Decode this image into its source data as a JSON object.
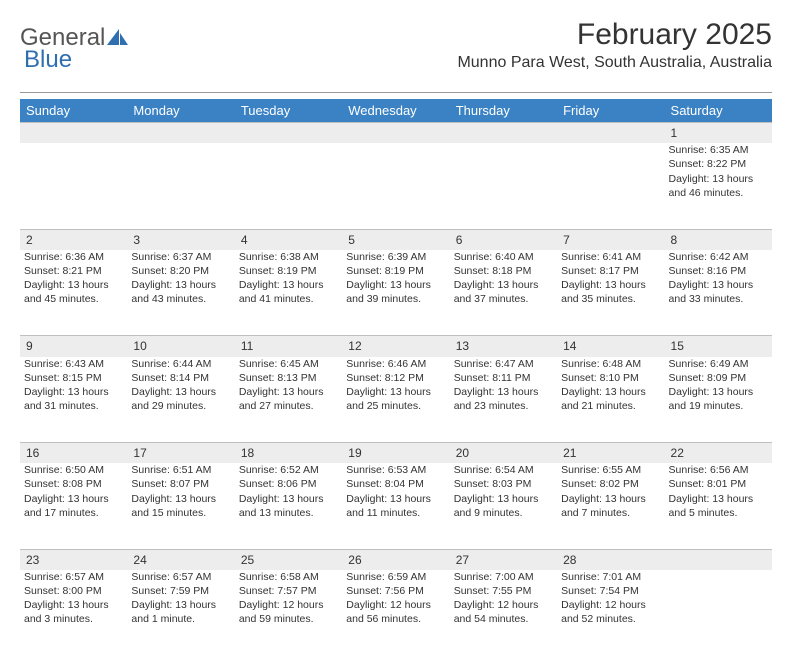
{
  "logo": {
    "word1": "General",
    "word2": "Blue"
  },
  "title": "February 2025",
  "location": "Munno Para West, South Australia, Australia",
  "colors": {
    "header_bg": "#3b82c4",
    "header_text": "#ffffff",
    "daynum_bg": "#ededed",
    "rule": "#999999",
    "logo_accent": "#2f6fb0"
  },
  "day_headers": [
    "Sunday",
    "Monday",
    "Tuesday",
    "Wednesday",
    "Thursday",
    "Friday",
    "Saturday"
  ],
  "weeks": [
    {
      "nums": [
        "",
        "",
        "",
        "",
        "",
        "",
        "1"
      ],
      "cells": [
        [],
        [],
        [],
        [],
        [],
        [],
        [
          "Sunrise: 6:35 AM",
          "Sunset: 8:22 PM",
          "Daylight: 13 hours and 46 minutes."
        ]
      ]
    },
    {
      "nums": [
        "2",
        "3",
        "4",
        "5",
        "6",
        "7",
        "8"
      ],
      "cells": [
        [
          "Sunrise: 6:36 AM",
          "Sunset: 8:21 PM",
          "Daylight: 13 hours and 45 minutes."
        ],
        [
          "Sunrise: 6:37 AM",
          "Sunset: 8:20 PM",
          "Daylight: 13 hours and 43 minutes."
        ],
        [
          "Sunrise: 6:38 AM",
          "Sunset: 8:19 PM",
          "Daylight: 13 hours and 41 minutes."
        ],
        [
          "Sunrise: 6:39 AM",
          "Sunset: 8:19 PM",
          "Daylight: 13 hours and 39 minutes."
        ],
        [
          "Sunrise: 6:40 AM",
          "Sunset: 8:18 PM",
          "Daylight: 13 hours and 37 minutes."
        ],
        [
          "Sunrise: 6:41 AM",
          "Sunset: 8:17 PM",
          "Daylight: 13 hours and 35 minutes."
        ],
        [
          "Sunrise: 6:42 AM",
          "Sunset: 8:16 PM",
          "Daylight: 13 hours and 33 minutes."
        ]
      ]
    },
    {
      "nums": [
        "9",
        "10",
        "11",
        "12",
        "13",
        "14",
        "15"
      ],
      "cells": [
        [
          "Sunrise: 6:43 AM",
          "Sunset: 8:15 PM",
          "Daylight: 13 hours and 31 minutes."
        ],
        [
          "Sunrise: 6:44 AM",
          "Sunset: 8:14 PM",
          "Daylight: 13 hours and 29 minutes."
        ],
        [
          "Sunrise: 6:45 AM",
          "Sunset: 8:13 PM",
          "Daylight: 13 hours and 27 minutes."
        ],
        [
          "Sunrise: 6:46 AM",
          "Sunset: 8:12 PM",
          "Daylight: 13 hours and 25 minutes."
        ],
        [
          "Sunrise: 6:47 AM",
          "Sunset: 8:11 PM",
          "Daylight: 13 hours and 23 minutes."
        ],
        [
          "Sunrise: 6:48 AM",
          "Sunset: 8:10 PM",
          "Daylight: 13 hours and 21 minutes."
        ],
        [
          "Sunrise: 6:49 AM",
          "Sunset: 8:09 PM",
          "Daylight: 13 hours and 19 minutes."
        ]
      ]
    },
    {
      "nums": [
        "16",
        "17",
        "18",
        "19",
        "20",
        "21",
        "22"
      ],
      "cells": [
        [
          "Sunrise: 6:50 AM",
          "Sunset: 8:08 PM",
          "Daylight: 13 hours and 17 minutes."
        ],
        [
          "Sunrise: 6:51 AM",
          "Sunset: 8:07 PM",
          "Daylight: 13 hours and 15 minutes."
        ],
        [
          "Sunrise: 6:52 AM",
          "Sunset: 8:06 PM",
          "Daylight: 13 hours and 13 minutes."
        ],
        [
          "Sunrise: 6:53 AM",
          "Sunset: 8:04 PM",
          "Daylight: 13 hours and 11 minutes."
        ],
        [
          "Sunrise: 6:54 AM",
          "Sunset: 8:03 PM",
          "Daylight: 13 hours and 9 minutes."
        ],
        [
          "Sunrise: 6:55 AM",
          "Sunset: 8:02 PM",
          "Daylight: 13 hours and 7 minutes."
        ],
        [
          "Sunrise: 6:56 AM",
          "Sunset: 8:01 PM",
          "Daylight: 13 hours and 5 minutes."
        ]
      ]
    },
    {
      "nums": [
        "23",
        "24",
        "25",
        "26",
        "27",
        "28",
        ""
      ],
      "cells": [
        [
          "Sunrise: 6:57 AM",
          "Sunset: 8:00 PM",
          "Daylight: 13 hours and 3 minutes."
        ],
        [
          "Sunrise: 6:57 AM",
          "Sunset: 7:59 PM",
          "Daylight: 13 hours and 1 minute."
        ],
        [
          "Sunrise: 6:58 AM",
          "Sunset: 7:57 PM",
          "Daylight: 12 hours and 59 minutes."
        ],
        [
          "Sunrise: 6:59 AM",
          "Sunset: 7:56 PM",
          "Daylight: 12 hours and 56 minutes."
        ],
        [
          "Sunrise: 7:00 AM",
          "Sunset: 7:55 PM",
          "Daylight: 12 hours and 54 minutes."
        ],
        [
          "Sunrise: 7:01 AM",
          "Sunset: 7:54 PM",
          "Daylight: 12 hours and 52 minutes."
        ],
        []
      ]
    }
  ]
}
